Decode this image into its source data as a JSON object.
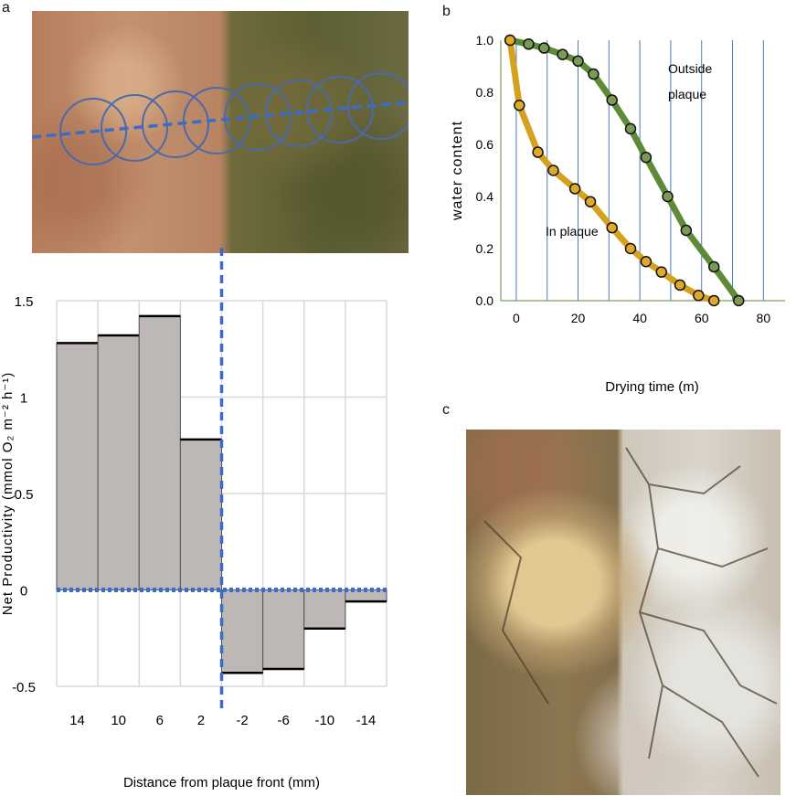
{
  "panels": {
    "a": {
      "label": "a"
    },
    "b": {
      "label": "b"
    },
    "c": {
      "label": "c"
    }
  },
  "colors": {
    "bar_fill": "#bdb7b6",
    "bar_edge": "#000000",
    "dash_blue": "#3b6cc9",
    "circle_blue": "#4a6aaa",
    "outside_line": "#5e8b38",
    "inside_line": "#d4a21f",
    "marker_outside": "#7a9a56",
    "marker_inside": "#e0a92a",
    "grid_b": "#4a79c8"
  },
  "chart_data": [
    {
      "id": "a",
      "type": "bar",
      "categories": [
        "14",
        "10",
        "6",
        "2",
        "-2",
        "-6",
        "-10",
        "-14"
      ],
      "values": [
        1.28,
        1.32,
        1.42,
        0.78,
        -0.43,
        -0.41,
        -0.2,
        -0.06
      ],
      "ylabel": "Net Productivity (mmol O₂ m⁻² h⁻¹)",
      "xlabel": "Distance from plaque front (mm)",
      "ylim": [
        -0.5,
        1.5
      ],
      "yticks": [
        {
          "value": 1.5,
          "label": "1.5"
        },
        {
          "value": 1,
          "label": "1"
        },
        {
          "value": 0.5,
          "label": "0.5"
        },
        {
          "value": 0,
          "label": "0"
        },
        {
          "value": -0.5,
          "label": "-0.5"
        }
      ],
      "grid": true
    },
    {
      "id": "b",
      "type": "line",
      "ylabel": "water content",
      "xlabel": "Drying time (m)",
      "xlim": [
        -5,
        87
      ],
      "ylim": [
        0,
        1
      ],
      "xticks": [
        {
          "value": 0,
          "label": "0"
        },
        {
          "value": 20,
          "label": "20"
        },
        {
          "value": 40,
          "label": "40"
        },
        {
          "value": 60,
          "label": "60"
        },
        {
          "value": 80,
          "label": "80"
        }
      ],
      "yticks": [
        {
          "value": 0,
          "label": "0.0"
        },
        {
          "value": 0.2,
          "label": "0.2"
        },
        {
          "value": 0.4,
          "label": "0.4"
        },
        {
          "value": 0.6,
          "label": "0.6"
        },
        {
          "value": 0.8,
          "label": "0.8"
        },
        {
          "value": 1.0,
          "label": "1.0"
        }
      ],
      "vgrid_x": [
        0,
        10,
        20,
        30,
        40,
        50,
        60,
        70,
        80
      ],
      "series": [
        {
          "name": "Outside plaque",
          "label_lines": [
            "Outside",
            "plaque"
          ],
          "x": [
            -2,
            4,
            9,
            15,
            20,
            25,
            31,
            37,
            42,
            49,
            55,
            64,
            72
          ],
          "y": [
            1.0,
            0.985,
            0.97,
            0.945,
            0.92,
            0.87,
            0.77,
            0.66,
            0.55,
            0.4,
            0.27,
            0.13,
            0.0
          ]
        },
        {
          "name": "In plaque",
          "label_lines": [
            "In plaque"
          ],
          "x": [
            -2,
            1,
            7,
            12,
            19,
            24,
            31,
            37,
            42,
            47,
            53,
            59,
            64
          ],
          "y": [
            1.0,
            0.75,
            0.57,
            0.5,
            0.43,
            0.38,
            0.28,
            0.2,
            0.15,
            0.11,
            0.06,
            0.02,
            0.0
          ]
        }
      ]
    }
  ]
}
